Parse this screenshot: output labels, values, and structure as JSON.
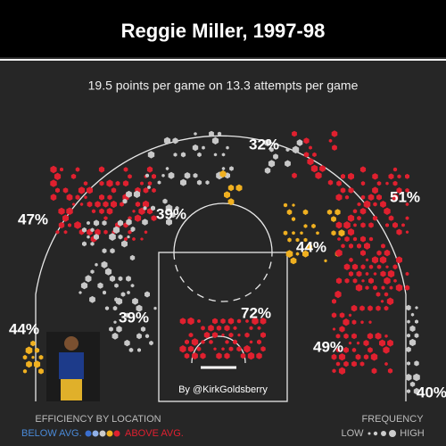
{
  "header": {
    "title": "Reggie Miller, 1997-98"
  },
  "subtitle": "19.5 points per game on 13.3 attempts per game",
  "zones": [
    "32%",
    "47%",
    "39%",
    "44%",
    "51%",
    "44%",
    "39%",
    "72%",
    "49%",
    "40%"
  ],
  "credit": "By @KirkGoldsberry",
  "legend": {
    "efficiency": {
      "title": "EFFICIENCY BY LOCATION",
      "low": "BELOW AVG.",
      "high": "ABOVE AVG."
    },
    "frequency": {
      "title": "FREQUENCY",
      "low": "LOW",
      "high": "HIGH"
    }
  }
}
